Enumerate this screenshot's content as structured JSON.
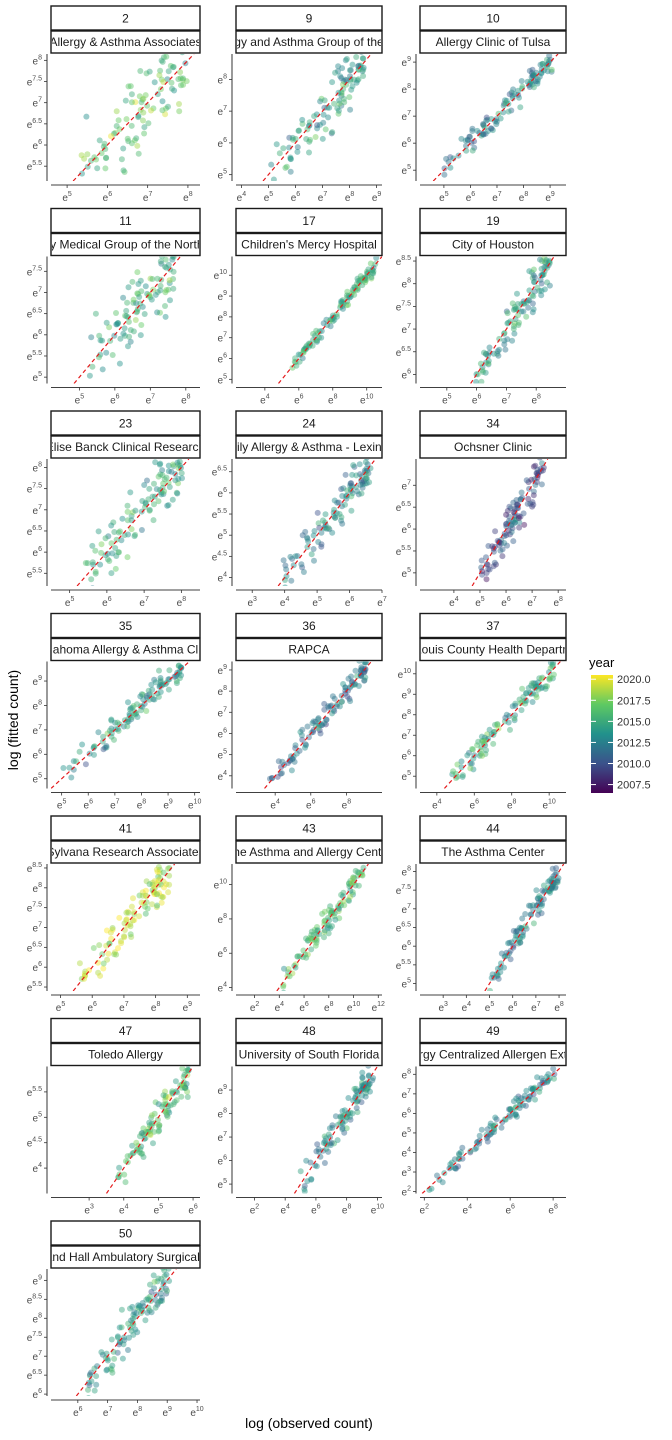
{
  "chart_data": {
    "type": "scatter",
    "xlabel": "log (observed count)",
    "ylabel": "log (fitted count)",
    "reference_line": "y = x",
    "legend": {
      "title": "year",
      "labels": [
        "2020.0",
        "2017.5",
        "2015.0",
        "2012.5",
        "2010.0",
        "2007.5"
      ],
      "range": [
        2006.5,
        2020.5
      ],
      "placement": "right"
    },
    "panels": [
      {
        "id": "2",
        "site": "Allergy & Asthma Associates",
        "xlim": [
          4.6,
          8.3
        ],
        "ylim": [
          5.15,
          8.15
        ],
        "xticks": [
          "5",
          "6",
          "7",
          "8"
        ],
        "yticks": [
          "5.5",
          "6",
          "6.5",
          "7",
          "7.5",
          "8"
        ],
        "year": 2016,
        "spread": 0.9
      },
      {
        "id": "9",
        "site": "Allergy and Asthma Group of the Bay",
        "xlim": [
          3.8,
          9.2
        ],
        "ylim": [
          4.8,
          8.8
        ],
        "xticks": [
          "4",
          "5",
          "6",
          "7",
          "8",
          "9"
        ],
        "yticks": [
          "5",
          "6",
          "7",
          "8"
        ],
        "year": 2014,
        "spread": 0.7
      },
      {
        "id": "10",
        "site": "Allergy Clinic of Tulsa",
        "xlim": [
          4.1,
          9.6
        ],
        "ylim": [
          4.6,
          9.3
        ],
        "xticks": [
          "5",
          "6",
          "7",
          "8",
          "9"
        ],
        "yticks": [
          "5",
          "6",
          "7",
          "8",
          "9"
        ],
        "year": 2013,
        "spread": 0.4
      },
      {
        "id": "11",
        "site": "Allergy Medical Group of the North Area",
        "xlim": [
          4.2,
          8.4
        ],
        "ylim": [
          4.85,
          7.85
        ],
        "xticks": [
          "5",
          "6",
          "7",
          "8"
        ],
        "yticks": [
          "5",
          "5.5",
          "6",
          "6.5",
          "7",
          "7.5"
        ],
        "year": 2015,
        "spread": 0.8
      },
      {
        "id": "17",
        "site": "Children's Mercy Hospital",
        "xlim": [
          2.3,
          10.9
        ],
        "ylim": [
          4.8,
          10.9
        ],
        "xticks": [
          "4",
          "6",
          "8",
          "10"
        ],
        "yticks": [
          "5",
          "6",
          "7",
          "8",
          "9",
          "10"
        ],
        "year": 2015,
        "spread": 0.3
      },
      {
        "id": "19",
        "site": "City of Houston",
        "xlim": [
          4.1,
          9.0
        ],
        "ylim": [
          5.8,
          8.6
        ],
        "xticks": [
          "5",
          "6",
          "7",
          "8"
        ],
        "yticks": [
          "6",
          "6.5",
          "7",
          "7.5",
          "8",
          "8.5"
        ],
        "year": 2014,
        "spread": 0.4
      },
      {
        "id": "23",
        "site": "Elise Banck Clinical Research",
        "xlim": [
          4.5,
          8.5
        ],
        "ylim": [
          5.2,
          8.2
        ],
        "xticks": [
          "5",
          "6",
          "7",
          "8"
        ],
        "yticks": [
          "5.5",
          "6",
          "6.5",
          "7",
          "7.5",
          "8"
        ],
        "year": 2015,
        "spread": 0.6
      },
      {
        "id": "24",
        "site": "Family Allergy & Asthma - Lexington",
        "xlim": [
          2.5,
          7.0
        ],
        "ylim": [
          3.8,
          6.8
        ],
        "xticks": [
          "3",
          "4",
          "5",
          "6",
          "7"
        ],
        "yticks": [
          "4",
          "4.5",
          "5",
          "5.5",
          "6",
          "6.5"
        ],
        "year": 2013,
        "spread": 0.4
      },
      {
        "id": "34",
        "site": "Ochsner Clinic",
        "xlim": [
          2.7,
          8.3
        ],
        "ylim": [
          4.7,
          7.6
        ],
        "xticks": [
          "4",
          "5",
          "6",
          "7",
          "8"
        ],
        "yticks": [
          "5",
          "5.5",
          "6",
          "6.5",
          "7"
        ],
        "year": 2010,
        "spread": 0.4
      },
      {
        "id": "35",
        "site": "Oklahoma Allergy & Asthma Clinic",
        "xlim": [
          4.6,
          10.2
        ],
        "ylim": [
          4.6,
          9.8
        ],
        "xticks": [
          "5",
          "6",
          "7",
          "8",
          "9",
          "10"
        ],
        "yticks": [
          "5",
          "6",
          "7",
          "8",
          "9"
        ],
        "year": 2014,
        "spread": 0.5
      },
      {
        "id": "36",
        "site": "RAPCA",
        "xlim": [
          1.8,
          10.0
        ],
        "ylim": [
          3.4,
          9.4
        ],
        "xticks": [
          "4",
          "6",
          "8"
        ],
        "yticks": [
          "4",
          "5",
          "6",
          "7",
          "8",
          "9"
        ],
        "year": 2012,
        "spread": 0.5
      },
      {
        "id": "37",
        "site": "St. Louis County Health Department",
        "xlim": [
          3.1,
          10.9
        ],
        "ylim": [
          4.4,
          10.6
        ],
        "xticks": [
          "4",
          "6",
          "8",
          "10"
        ],
        "yticks": [
          "5",
          "6",
          "7",
          "8",
          "9",
          "10"
        ],
        "year": 2015,
        "spread": 0.5
      },
      {
        "id": "41",
        "site": "Sylvana Research Associates",
        "xlim": [
          4.7,
          9.4
        ],
        "ylim": [
          5.4,
          8.6
        ],
        "xticks": [
          "5",
          "6",
          "7",
          "8",
          "9"
        ],
        "yticks": [
          "5.5",
          "6",
          "6.5",
          "7",
          "7.5",
          "8",
          "8.5"
        ],
        "year": 2019,
        "spread": 0.5
      },
      {
        "id": "43",
        "site": "The Asthma and Allergy Center",
        "xlim": [
          0.5,
          12.3
        ],
        "ylim": [
          3.8,
          11.2
        ],
        "xticks": [
          "2",
          "4",
          "6",
          "8",
          "10",
          "12"
        ],
        "yticks": [
          "4",
          "6",
          "8",
          "10"
        ],
        "year": 2016,
        "spread": 0.6
      },
      {
        "id": "44",
        "site": "The Asthma Center",
        "xlim": [
          2.0,
          8.3
        ],
        "ylim": [
          4.8,
          8.2
        ],
        "xticks": [
          "3",
          "4",
          "5",
          "6",
          "7",
          "8"
        ],
        "yticks": [
          "5",
          "5.5",
          "6",
          "6.5",
          "7",
          "7.5",
          "8"
        ],
        "year": 2013,
        "spread": 0.3
      },
      {
        "id": "47",
        "site": "Toledo Allergy",
        "xlim": [
          1.9,
          6.2
        ],
        "ylim": [
          3.5,
          6.0
        ],
        "xticks": [
          "3",
          "4",
          "5",
          "6"
        ],
        "yticks": [
          "4",
          "4.5",
          "5",
          "5.5"
        ],
        "year": 2016,
        "spread": 0.3
      },
      {
        "id": "48",
        "site": "University of South Florida",
        "xlim": [
          0.8,
          10.3
        ],
        "ylim": [
          4.6,
          10.0
        ],
        "xticks": [
          "2",
          "4",
          "6",
          "8",
          "10"
        ],
        "yticks": [
          "5",
          "6",
          "7",
          "8",
          "9"
        ],
        "year": 2013,
        "spread": 0.6
      },
      {
        "id": "49",
        "site": "Allergy Centralized Allergen Extract",
        "xlim": [
          1.8,
          8.6
        ],
        "ylim": [
          1.9,
          8.4
        ],
        "xticks": [
          "2",
          "4",
          "6",
          "8"
        ],
        "yticks": [
          "2",
          "3",
          "4",
          "5",
          "6",
          "7",
          "8"
        ],
        "year": 2013,
        "spread": 0.4
      },
      {
        "id": "50",
        "site": "Woodland Hall Ambulatory Surgical Center",
        "xlim": [
          5.1,
          10.1
        ],
        "ylim": [
          5.95,
          9.3
        ],
        "xticks": [
          "6",
          "7",
          "8",
          "9",
          "10"
        ],
        "yticks": [
          "6",
          "6.5",
          "7",
          "7.5",
          "8",
          "8.5",
          "9"
        ],
        "year": 2014,
        "spread": 0.5
      }
    ]
  }
}
